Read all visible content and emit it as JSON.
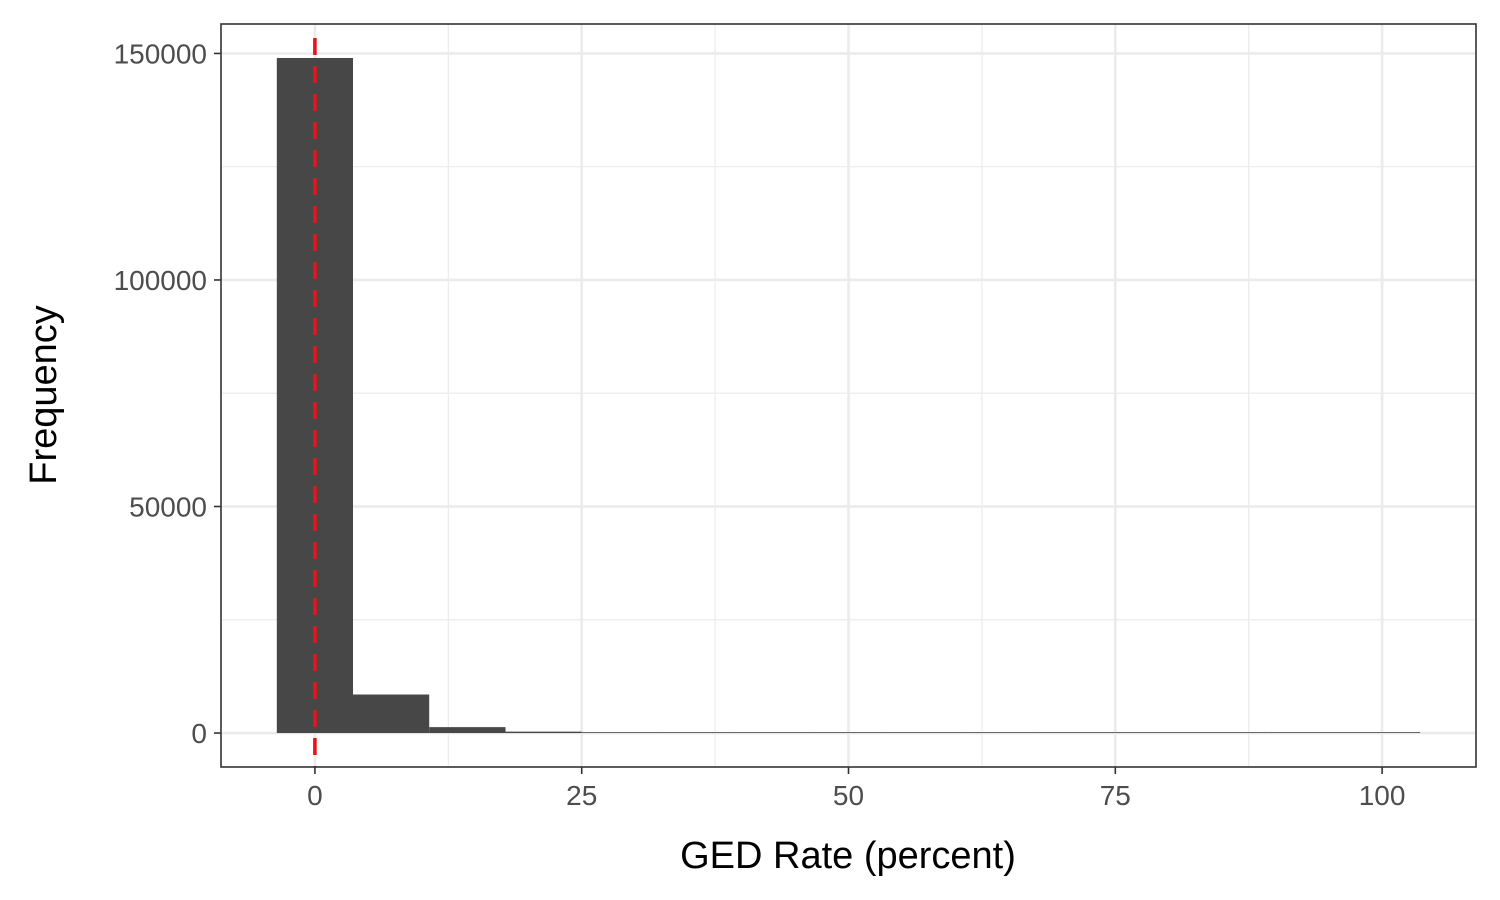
{
  "chart_data": {
    "type": "bar",
    "subtype": "histogram",
    "title": "",
    "xlabel": "GED Rate (percent)",
    "ylabel": "Frequency",
    "xlim": [
      -8.8,
      108.8
    ],
    "ylim": [
      -7500,
      156500
    ],
    "x_ticks": [
      0,
      25,
      50,
      75,
      100
    ],
    "y_ticks": [
      0,
      50000,
      100000,
      150000
    ],
    "bin_width": 7.14,
    "bins": [
      {
        "x0": -3.57,
        "x1": 3.57,
        "count": 149000
      },
      {
        "x0": 3.57,
        "x1": 10.71,
        "count": 8500
      },
      {
        "x0": 10.71,
        "x1": 17.86,
        "count": 1300
      },
      {
        "x0": 17.86,
        "x1": 25.0,
        "count": 300
      },
      {
        "x0": 25.0,
        "x1": 32.14,
        "count": 100
      },
      {
        "x0": 32.14,
        "x1": 39.29,
        "count": 40
      },
      {
        "x0": 39.29,
        "x1": 46.43,
        "count": 150
      },
      {
        "x0": 46.43,
        "x1": 53.57,
        "count": 30
      },
      {
        "x0": 53.57,
        "x1": 60.71,
        "count": 10
      },
      {
        "x0": 60.71,
        "x1": 67.86,
        "count": 10
      },
      {
        "x0": 67.86,
        "x1": 75.0,
        "count": 5
      },
      {
        "x0": 75.0,
        "x1": 82.14,
        "count": 5
      },
      {
        "x0": 82.14,
        "x1": 89.29,
        "count": 5
      },
      {
        "x0": 89.29,
        "x1": 96.43,
        "count": 5
      },
      {
        "x0": 96.43,
        "x1": 103.57,
        "count": 20
      }
    ],
    "reference_line": {
      "x": 0,
      "color": "#e8131b",
      "style": "dashed"
    },
    "bar_color": "#474747",
    "grid": true,
    "legend": "none"
  }
}
